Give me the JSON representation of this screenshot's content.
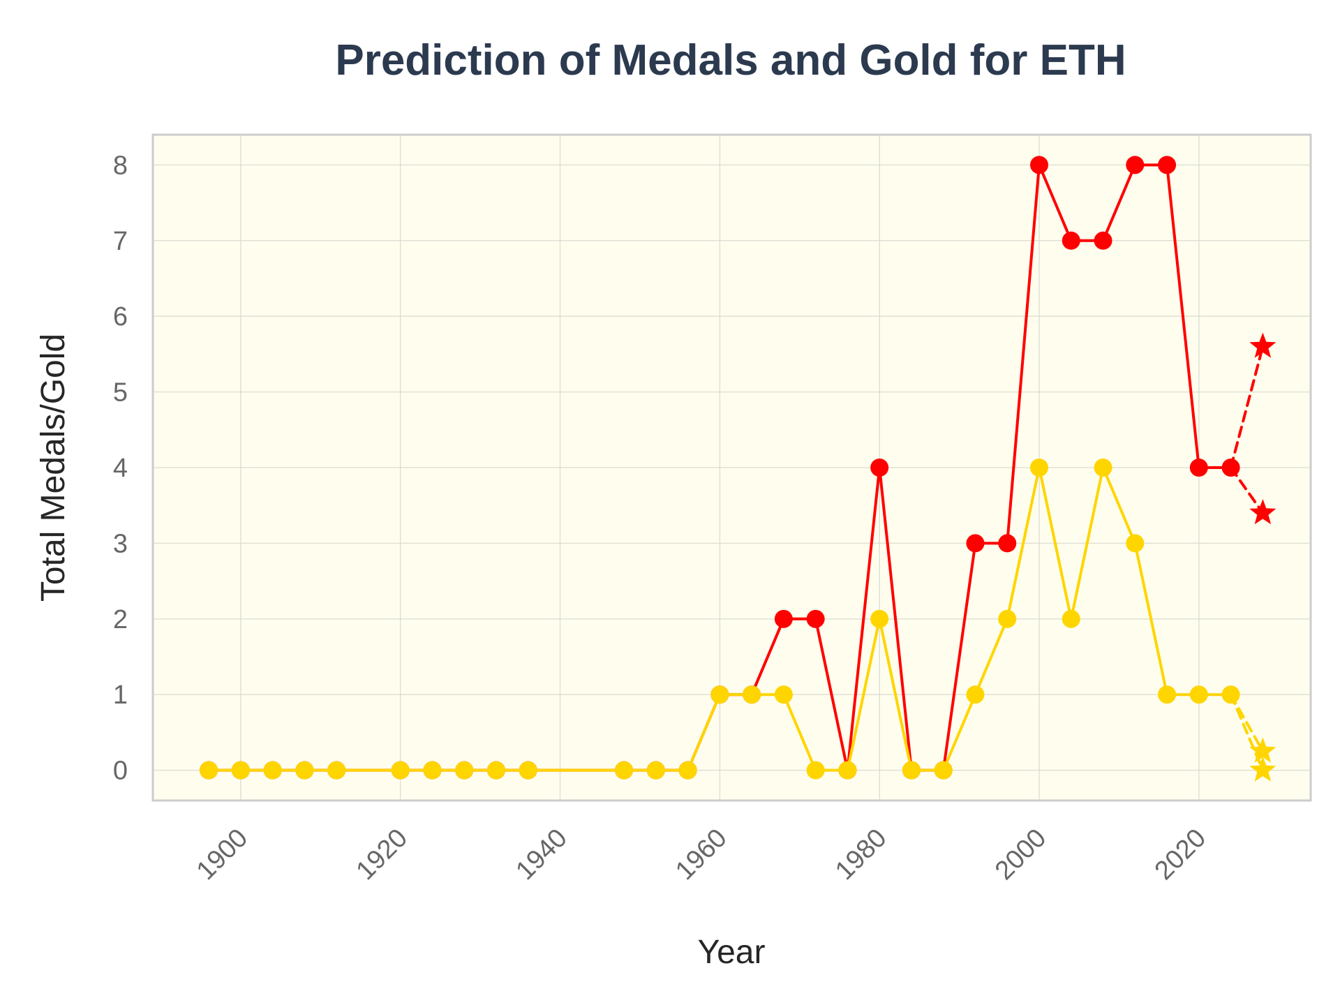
{
  "chart_data": {
    "type": "line",
    "title": "Prediction of Medals and Gold for ETH",
    "xlabel": "Year",
    "ylabel": "Total Medals/Gold",
    "xlim": [
      1889,
      2034
    ],
    "ylim": [
      -0.4,
      8.4
    ],
    "x_ticks": [
      1900,
      1920,
      1940,
      1960,
      1980,
      2000,
      2020
    ],
    "y_ticks": [
      0,
      1,
      2,
      3,
      4,
      5,
      6,
      7,
      8
    ],
    "grid": true,
    "background_color": "#fffeee",
    "series": [
      {
        "color": "#ff0000",
        "marker": "circle",
        "line_style": "solid",
        "x": [
          1896,
          1900,
          1904,
          1908,
          1912,
          1920,
          1924,
          1928,
          1932,
          1936,
          1948,
          1952,
          1956,
          1960,
          1964,
          1968,
          1972,
          1976,
          1980,
          1984,
          1988,
          1992,
          1996,
          2000,
          2004,
          2008,
          2012,
          2016,
          2020,
          2024
        ],
        "y": [
          0,
          0,
          0,
          0,
          0,
          0,
          0,
          0,
          0,
          0,
          0,
          0,
          0,
          1,
          1,
          2,
          2,
          0,
          4,
          0,
          0,
          3,
          3,
          8,
          7,
          7,
          8,
          8,
          4,
          4
        ]
      },
      {
        "color": "#ffd500",
        "marker": "circle",
        "line_style": "solid",
        "x": [
          1896,
          1900,
          1904,
          1908,
          1912,
          1920,
          1924,
          1928,
          1932,
          1936,
          1948,
          1952,
          1956,
          1960,
          1964,
          1968,
          1972,
          1976,
          1980,
          1984,
          1988,
          1992,
          1996,
          2000,
          2004,
          2008,
          2012,
          2016,
          2020,
          2024
        ],
        "y": [
          0,
          0,
          0,
          0,
          0,
          0,
          0,
          0,
          0,
          0,
          0,
          0,
          0,
          1,
          1,
          1,
          0,
          0,
          2,
          0,
          0,
          1,
          2,
          4,
          2,
          4,
          3,
          1,
          1,
          1
        ]
      },
      {
        "color": "#ff0000",
        "marker": "star",
        "line_style": "dashed",
        "x": [
          2024,
          2028
        ],
        "y": [
          4,
          5.6
        ]
      },
      {
        "color": "#ff0000",
        "marker": "star",
        "line_style": "dashed",
        "x": [
          2024,
          2028
        ],
        "y": [
          4,
          3.4
        ]
      },
      {
        "color": "#ffd500",
        "marker": "star",
        "line_style": "dashed",
        "x": [
          2024,
          2028
        ],
        "y": [
          1,
          0.25
        ]
      },
      {
        "color": "#ffd500",
        "marker": "star",
        "line_style": "dashed",
        "x": [
          2024,
          2028
        ],
        "y": [
          1,
          0
        ]
      }
    ]
  }
}
